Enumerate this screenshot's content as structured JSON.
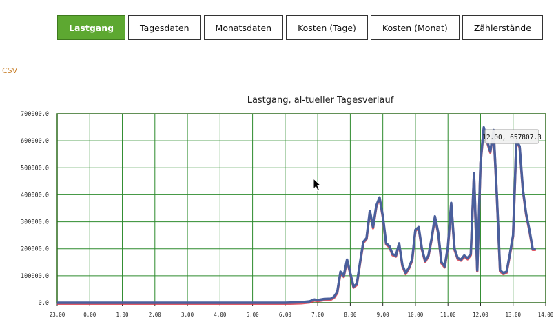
{
  "tabs": [
    {
      "label": "Lastgang",
      "active": true
    },
    {
      "label": "Tagesdaten",
      "active": false
    },
    {
      "label": "Monatsdaten",
      "active": false
    },
    {
      "label": "Kosten (Tage)",
      "active": false
    },
    {
      "label": "Kosten (Monat)",
      "active": false
    },
    {
      "label": "Zählerstände",
      "active": false
    }
  ],
  "csv_link": "CSV",
  "colors": {
    "active_tab": "#5da831",
    "link": "#c8802c",
    "grid": "#2e8b2e",
    "series": "#4a5f9c",
    "series_shadow": "#d83040"
  },
  "chart_data": {
    "type": "line",
    "title": "Lastgang, al-tueller Tagesverlauf",
    "x_ticks": [
      "23.00",
      "0.00",
      "1.00",
      "2.00",
      "3.00",
      "4.00",
      "5.00",
      "6.00",
      "7.00",
      "8.00",
      "9.00",
      "10.00",
      "11.00",
      "12.00",
      "13.00",
      "14.00"
    ],
    "y_ticks": [
      "0.0",
      "100000.0",
      "200000.0",
      "300000.0",
      "400000.0",
      "500000.0",
      "600000.0",
      "700000.0"
    ],
    "xlim": [
      -1,
      14
    ],
    "ylim": [
      0,
      700000
    ],
    "grid": true,
    "tooltip": "12.00, 657807.3",
    "series": [
      {
        "x": [
          -1,
          0,
          1,
          2,
          3,
          4,
          5,
          6,
          6.5,
          6.75,
          6.9,
          7.0,
          7.2,
          7.4,
          7.5,
          7.6,
          7.7,
          7.8,
          7.9,
          8.0,
          8.1,
          8.2,
          8.3,
          8.4,
          8.5,
          8.6,
          8.7,
          8.8,
          8.9,
          9.0,
          9.1,
          9.2,
          9.3,
          9.4,
          9.5,
          9.6,
          9.7,
          9.8,
          9.9,
          10.0,
          10.1,
          10.2,
          10.3,
          10.4,
          10.5,
          10.6,
          10.7,
          10.8,
          10.9,
          11.0,
          11.1,
          11.2,
          11.3,
          11.4,
          11.5,
          11.6,
          11.7,
          11.8,
          11.9,
          12.0,
          12.1,
          12.2,
          12.3,
          12.4,
          12.5,
          12.6,
          12.7,
          12.8,
          12.9,
          13.0,
          13.1,
          13.2,
          13.3,
          13.4,
          13.5,
          13.6,
          13.7
        ],
        "y": [
          0,
          0,
          0,
          0,
          0,
          0,
          0,
          0,
          2000,
          5000,
          12000,
          10000,
          14000,
          15000,
          22000,
          40000,
          115000,
          100000,
          160000,
          110000,
          60000,
          70000,
          150000,
          225000,
          240000,
          340000,
          280000,
          360000,
          390000,
          320000,
          220000,
          210000,
          180000,
          175000,
          220000,
          140000,
          110000,
          130000,
          160000,
          270000,
          280000,
          200000,
          155000,
          175000,
          240000,
          320000,
          260000,
          150000,
          135000,
          210000,
          370000,
          200000,
          165000,
          160000,
          175000,
          165000,
          180000,
          480000,
          120000,
          520000,
          650000,
          600000,
          560000,
          640000,
          400000,
          120000,
          110000,
          115000,
          180000,
          250000,
          600000,
          580000,
          420000,
          330000,
          270000,
          200000,
          200000
        ]
      }
    ]
  }
}
